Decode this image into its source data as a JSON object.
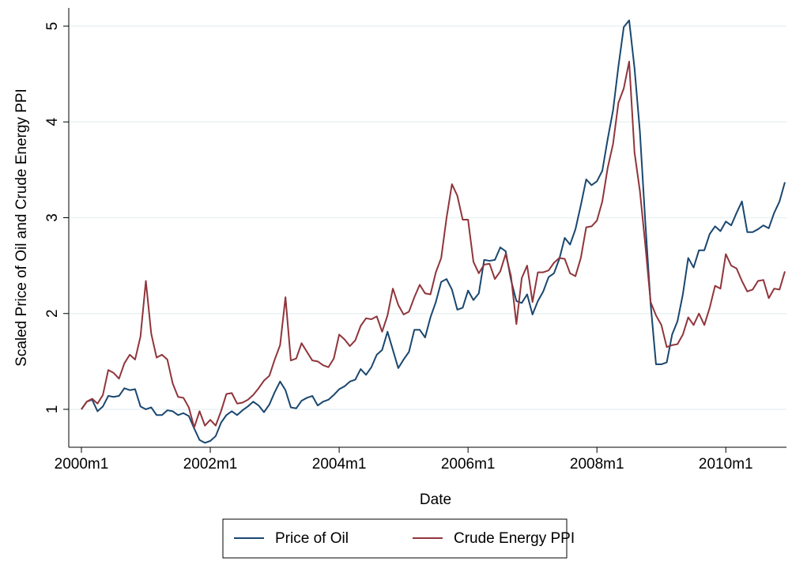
{
  "chart_data": {
    "type": "line",
    "x_label": "Date",
    "y_label": "Scaled Price of Oil and Crude Energy PPI",
    "categories": [
      "2000m1",
      null,
      null,
      null,
      null,
      null,
      null,
      null,
      null,
      null,
      null,
      null,
      null,
      null,
      null,
      null,
      null,
      null,
      null,
      null,
      null,
      null,
      null,
      null,
      "2002m1",
      null,
      null,
      null,
      null,
      null,
      null,
      null,
      null,
      null,
      null,
      null,
      null,
      null,
      null,
      null,
      null,
      null,
      null,
      null,
      null,
      null,
      null,
      null,
      "2004m1",
      null,
      null,
      null,
      null,
      null,
      null,
      null,
      null,
      null,
      null,
      null,
      null,
      null,
      null,
      null,
      null,
      null,
      null,
      null,
      null,
      null,
      null,
      null,
      "2006m1",
      null,
      null,
      null,
      null,
      null,
      null,
      null,
      null,
      null,
      null,
      null,
      null,
      null,
      null,
      null,
      null,
      null,
      null,
      null,
      null,
      null,
      null,
      null,
      "2008m1",
      null,
      null,
      null,
      null,
      null,
      null,
      null,
      null,
      null,
      null,
      null,
      null,
      null,
      null,
      null,
      null,
      null,
      null,
      null,
      null,
      null,
      null,
      null,
      "2010m1",
      null,
      null,
      null,
      null,
      null,
      null,
      null,
      null,
      null,
      null,
      null
    ],
    "series": [
      {
        "name": "Price of Oil",
        "color": "#1a476f",
        "values": [
          1.0,
          1.08,
          1.1,
          0.98,
          1.03,
          1.14,
          1.13,
          1.14,
          1.22,
          1.2,
          1.21,
          1.03,
          1.0,
          1.02,
          0.94,
          0.94,
          0.99,
          0.98,
          0.94,
          0.96,
          0.93,
          0.8,
          0.68,
          0.65,
          0.67,
          0.72,
          0.86,
          0.94,
          0.98,
          0.94,
          0.99,
          1.03,
          1.08,
          1.04,
          0.97,
          1.05,
          1.18,
          1.29,
          1.2,
          1.02,
          1.01,
          1.09,
          1.12,
          1.14,
          1.04,
          1.08,
          1.1,
          1.15,
          1.21,
          1.24,
          1.29,
          1.31,
          1.42,
          1.36,
          1.44,
          1.57,
          1.62,
          1.81,
          1.62,
          1.43,
          1.52,
          1.6,
          1.83,
          1.83,
          1.75,
          1.96,
          2.12,
          2.33,
          2.36,
          2.25,
          2.04,
          2.06,
          2.24,
          2.14,
          2.21,
          2.56,
          2.55,
          2.56,
          2.69,
          2.65,
          2.35,
          2.13,
          2.11,
          2.2,
          1.99,
          2.13,
          2.23,
          2.38,
          2.42,
          2.57,
          2.79,
          2.72,
          2.88,
          3.13,
          3.4,
          3.34,
          3.38,
          3.49,
          3.82,
          4.12,
          4.58,
          4.99,
          5.06,
          4.56,
          3.9,
          2.96,
          2.1,
          1.47,
          1.47,
          1.49,
          1.78,
          1.92,
          2.2,
          2.58,
          2.48,
          2.66,
          2.66,
          2.83,
          2.91,
          2.86,
          2.96,
          2.92,
          3.05,
          3.17,
          2.85,
          2.85,
          2.88,
          2.92,
          2.89,
          3.05,
          3.17,
          3.37
        ]
      },
      {
        "name": "Crude Energy PPI",
        "color": "#90353b",
        "values": [
          1.0,
          1.08,
          1.11,
          1.06,
          1.15,
          1.41,
          1.38,
          1.32,
          1.48,
          1.57,
          1.52,
          1.76,
          2.34,
          1.79,
          1.54,
          1.57,
          1.52,
          1.27,
          1.13,
          1.12,
          1.02,
          0.81,
          0.98,
          0.83,
          0.89,
          0.83,
          0.98,
          1.16,
          1.17,
          1.06,
          1.07,
          1.1,
          1.15,
          1.22,
          1.3,
          1.35,
          1.52,
          1.67,
          2.17,
          1.51,
          1.53,
          1.69,
          1.6,
          1.51,
          1.5,
          1.46,
          1.44,
          1.53,
          1.78,
          1.73,
          1.66,
          1.72,
          1.87,
          1.95,
          1.94,
          1.97,
          1.81,
          1.98,
          2.26,
          2.09,
          1.99,
          2.02,
          2.17,
          2.3,
          2.21,
          2.2,
          2.43,
          2.58,
          3.0,
          3.35,
          3.23,
          2.98,
          2.98,
          2.54,
          2.42,
          2.51,
          2.52,
          2.36,
          2.44,
          2.62,
          2.39,
          1.89,
          2.37,
          2.5,
          2.12,
          2.43,
          2.43,
          2.45,
          2.53,
          2.58,
          2.57,
          2.42,
          2.39,
          2.58,
          2.9,
          2.91,
          2.97,
          3.17,
          3.52,
          3.77,
          4.2,
          4.35,
          4.63,
          3.68,
          3.28,
          2.72,
          2.12,
          1.98,
          1.88,
          1.65,
          1.67,
          1.68,
          1.78,
          1.96,
          1.88,
          2.0,
          1.88,
          2.06,
          2.29,
          2.26,
          2.62,
          2.5,
          2.47,
          2.34,
          2.23,
          2.25,
          2.34,
          2.35,
          2.16,
          2.26,
          2.25,
          2.44
        ]
      }
    ],
    "ylim": [
      0.604,
      5.19
    ],
    "yticks": [
      1,
      2,
      3,
      4,
      5
    ],
    "grid": true
  }
}
